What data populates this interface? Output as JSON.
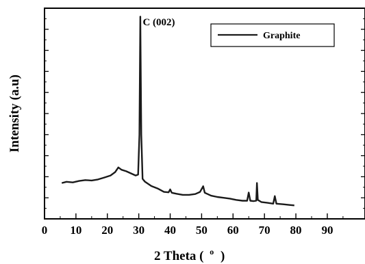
{
  "chart_data": {
    "type": "line",
    "title": "",
    "xlabel_main": "2 Theta (",
    "xlabel_sup": "o",
    "xlabel_close": ")",
    "ylabel": "Intensity (a.u)",
    "xlim": [
      0,
      102
    ],
    "ylim": [
      0,
      100
    ],
    "x_ticks": [
      0,
      10,
      20,
      30,
      40,
      50,
      60,
      70,
      80,
      90
    ],
    "x_tick_labels": [
      "0",
      "10",
      "20",
      "30",
      "40",
      "50",
      "60",
      "70",
      "80",
      "90"
    ],
    "y_ticks": [],
    "grid": false,
    "legend": {
      "position": "top-right",
      "entries": [
        "Graphite"
      ]
    },
    "annotations": [
      {
        "text": "C (002)",
        "x": 30.5,
        "y": 96
      }
    ],
    "series": [
      {
        "name": "Graphite",
        "color": "#1a1a1a",
        "points": [
          [
            5.5,
            17.0
          ],
          [
            7,
            17.6
          ],
          [
            9,
            17.3
          ],
          [
            11,
            18.0
          ],
          [
            13,
            18.4
          ],
          [
            15,
            18.2
          ],
          [
            17,
            18.7
          ],
          [
            19,
            19.6
          ],
          [
            21,
            20.6
          ],
          [
            22.5,
            22.2
          ],
          [
            23.5,
            24.4
          ],
          [
            24.5,
            23.3
          ],
          [
            26,
            22.6
          ],
          [
            27.5,
            21.6
          ],
          [
            29,
            20.6
          ],
          [
            29.8,
            21.0
          ],
          [
            30.2,
            40.0
          ],
          [
            30.5,
            96.0
          ],
          [
            30.8,
            40.0
          ],
          [
            31.2,
            19.0
          ],
          [
            32,
            17.6
          ],
          [
            33,
            16.6
          ],
          [
            34,
            15.6
          ],
          [
            36,
            14.4
          ],
          [
            38,
            12.8
          ],
          [
            39.5,
            12.6
          ],
          [
            40,
            14.0
          ],
          [
            40.5,
            12.4
          ],
          [
            42,
            11.9
          ],
          [
            44,
            11.4
          ],
          [
            46,
            11.4
          ],
          [
            48,
            11.8
          ],
          [
            49.5,
            12.8
          ],
          [
            50.5,
            15.5
          ],
          [
            51,
            12.4
          ],
          [
            53,
            11.0
          ],
          [
            55,
            10.4
          ],
          [
            57,
            10.0
          ],
          [
            59,
            9.6
          ],
          [
            61,
            9.0
          ],
          [
            63,
            8.6
          ],
          [
            64.5,
            8.6
          ],
          [
            65,
            12.5
          ],
          [
            65.5,
            8.6
          ],
          [
            66.5,
            8.4
          ],
          [
            67.4,
            8.6
          ],
          [
            67.6,
            17.0
          ],
          [
            67.9,
            9.0
          ],
          [
            69,
            8.0
          ],
          [
            71,
            7.6
          ],
          [
            72.8,
            7.2
          ],
          [
            73.3,
            10.8
          ],
          [
            73.8,
            7.2
          ],
          [
            76,
            6.9
          ],
          [
            78,
            6.6
          ],
          [
            79.5,
            6.4
          ]
        ]
      }
    ]
  }
}
